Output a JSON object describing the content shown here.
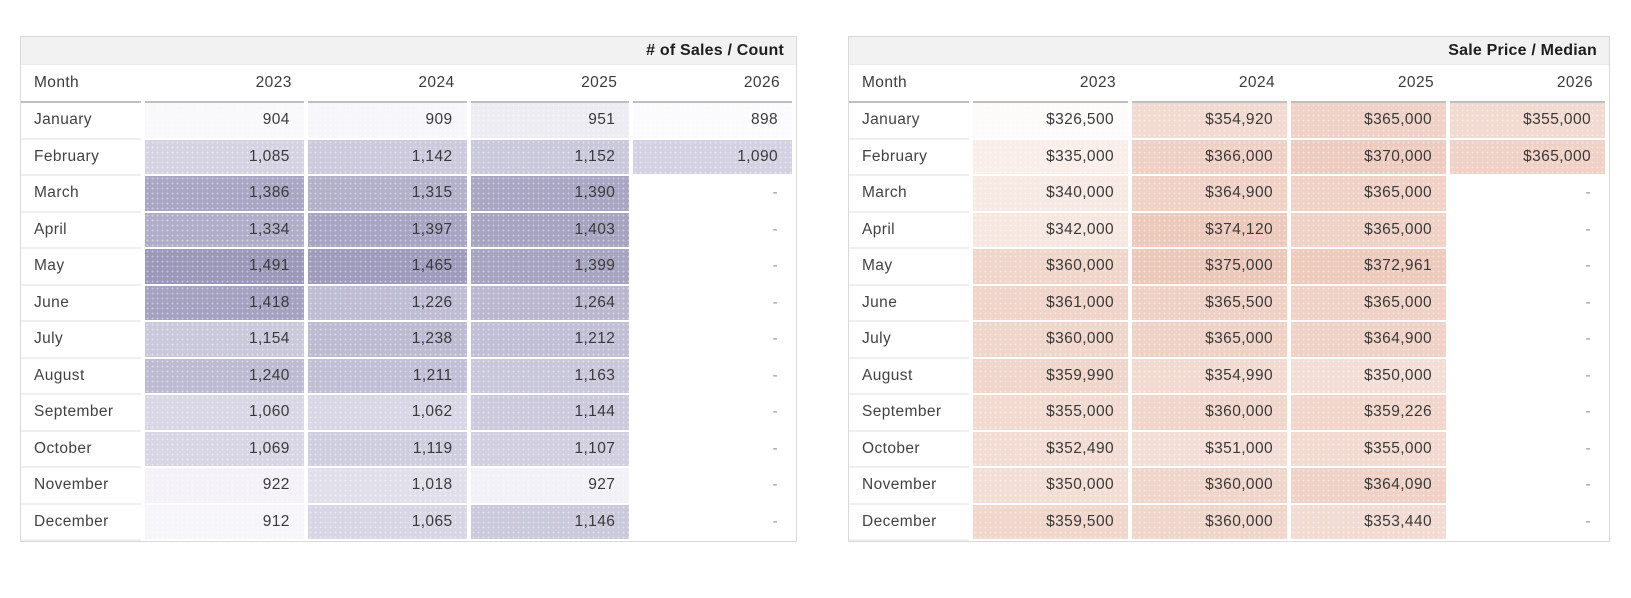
{
  "chart_data": [
    {
      "type": "heatmap",
      "title": "# of Sales / Count",
      "columns": [
        "Month",
        "2023",
        "2024",
        "2025",
        "2026"
      ],
      "empty_cell": "-",
      "legend_position": "none",
      "palette": {
        "min_color": "#fbfafd",
        "max_color": "#9b98ba",
        "min_value": 898,
        "max_value": 1491,
        "gamma": 0.8
      },
      "rows": [
        {
          "month": "January",
          "values": [
            904,
            909,
            951,
            898
          ],
          "display": [
            "904",
            "909",
            "951",
            "898"
          ]
        },
        {
          "month": "February",
          "values": [
            1085,
            1142,
            1152,
            1090
          ],
          "display": [
            "1,085",
            "1,142",
            "1,152",
            "1,090"
          ]
        },
        {
          "month": "March",
          "values": [
            1386,
            1315,
            1390,
            null
          ],
          "display": [
            "1,386",
            "1,315",
            "1,390",
            "-"
          ]
        },
        {
          "month": "April",
          "values": [
            1334,
            1397,
            1403,
            null
          ],
          "display": [
            "1,334",
            "1,397",
            "1,403",
            "-"
          ]
        },
        {
          "month": "May",
          "values": [
            1491,
            1465,
            1399,
            null
          ],
          "display": [
            "1,491",
            "1,465",
            "1,399",
            "-"
          ]
        },
        {
          "month": "June",
          "values": [
            1418,
            1226,
            1264,
            null
          ],
          "display": [
            "1,418",
            "1,226",
            "1,264",
            "-"
          ]
        },
        {
          "month": "July",
          "values": [
            1154,
            1238,
            1212,
            null
          ],
          "display": [
            "1,154",
            "1,238",
            "1,212",
            "-"
          ]
        },
        {
          "month": "August",
          "values": [
            1240,
            1211,
            1163,
            null
          ],
          "display": [
            "1,240",
            "1,211",
            "1,163",
            "-"
          ]
        },
        {
          "month": "September",
          "values": [
            1060,
            1062,
            1144,
            null
          ],
          "display": [
            "1,060",
            "1,062",
            "1,144",
            "-"
          ]
        },
        {
          "month": "October",
          "values": [
            1069,
            1119,
            1107,
            null
          ],
          "display": [
            "1,069",
            "1,119",
            "1,107",
            "-"
          ]
        },
        {
          "month": "November",
          "values": [
            922,
            1018,
            927,
            null
          ],
          "display": [
            "922",
            "1,018",
            "927",
            "-"
          ]
        },
        {
          "month": "December",
          "values": [
            912,
            1065,
            1146,
            null
          ],
          "display": [
            "912",
            "1,065",
            "1,146",
            "-"
          ]
        }
      ]
    },
    {
      "type": "heatmap",
      "title": "Sale Price / Median",
      "columns": [
        "Month",
        "2023",
        "2024",
        "2025",
        "2026"
      ],
      "empty_cell": "-",
      "legend_position": "none",
      "palette": {
        "min_color": "#fdfbfa",
        "max_color": "#ecc8ba",
        "min_value": 326500,
        "max_value": 375000,
        "gamma": 0.8
      },
      "rows": [
        {
          "month": "January",
          "values": [
            326500,
            354920,
            365000,
            355000
          ],
          "display": [
            "$326,500",
            "$354,920",
            "$365,000",
            "$355,000"
          ]
        },
        {
          "month": "February",
          "values": [
            335000,
            366000,
            370000,
            365000
          ],
          "display": [
            "$335,000",
            "$366,000",
            "$370,000",
            "$365,000"
          ]
        },
        {
          "month": "March",
          "values": [
            340000,
            364900,
            365000,
            null
          ],
          "display": [
            "$340,000",
            "$364,900",
            "$365,000",
            "-"
          ]
        },
        {
          "month": "April",
          "values": [
            342000,
            374120,
            365000,
            null
          ],
          "display": [
            "$342,000",
            "$374,120",
            "$365,000",
            "-"
          ]
        },
        {
          "month": "May",
          "values": [
            360000,
            375000,
            372961,
            null
          ],
          "display": [
            "$360,000",
            "$375,000",
            "$372,961",
            "-"
          ]
        },
        {
          "month": "June",
          "values": [
            361000,
            365500,
            365000,
            null
          ],
          "display": [
            "$361,000",
            "$365,500",
            "$365,000",
            "-"
          ]
        },
        {
          "month": "July",
          "values": [
            360000,
            365000,
            364900,
            null
          ],
          "display": [
            "$360,000",
            "$365,000",
            "$364,900",
            "-"
          ]
        },
        {
          "month": "August",
          "values": [
            359990,
            354990,
            350000,
            null
          ],
          "display": [
            "$359,990",
            "$354,990",
            "$350,000",
            "-"
          ]
        },
        {
          "month": "September",
          "values": [
            355000,
            360000,
            359226,
            null
          ],
          "display": [
            "$355,000",
            "$360,000",
            "$359,226",
            "-"
          ]
        },
        {
          "month": "October",
          "values": [
            352490,
            351000,
            355000,
            null
          ],
          "display": [
            "$352,490",
            "$351,000",
            "$355,000",
            "-"
          ]
        },
        {
          "month": "November",
          "values": [
            350000,
            360000,
            364090,
            null
          ],
          "display": [
            "$350,000",
            "$360,000",
            "$364,090",
            "-"
          ]
        },
        {
          "month": "December",
          "values": [
            359500,
            360000,
            353440,
            null
          ],
          "display": [
            "$359,500",
            "$360,000",
            "$353,440",
            "-"
          ]
        }
      ]
    }
  ]
}
